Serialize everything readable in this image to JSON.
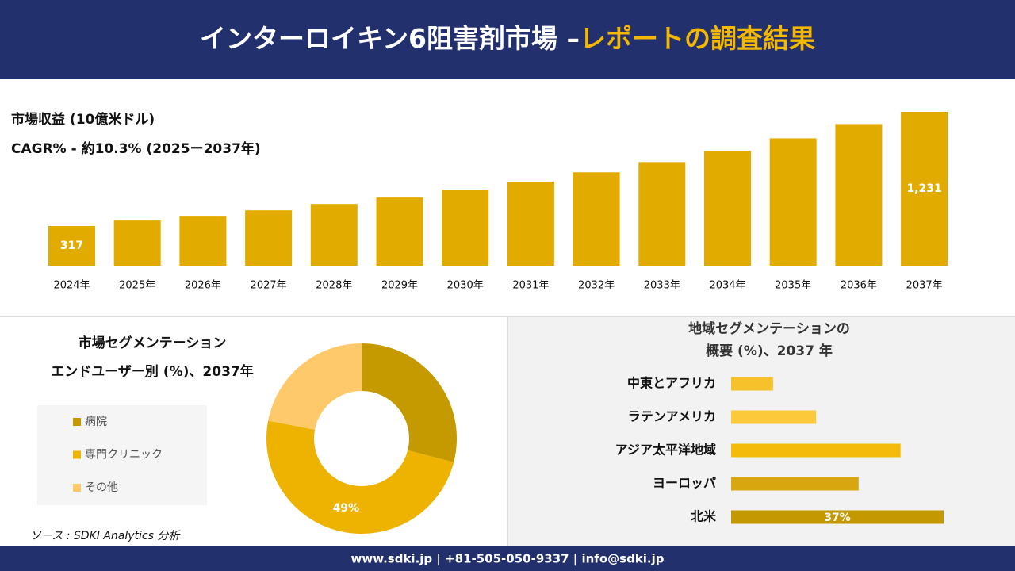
{
  "header": {
    "title": "インターロイキン6阻害剤市場 –",
    "title_highlight": "レポートの調査結果"
  },
  "chart_data": [
    {
      "type": "bar",
      "title": "市場収益 (10億米ドル)",
      "subtitle": "CAGR% - 約10.3% (2025ー2037年)",
      "categories": [
        "2024年",
        "2025年",
        "2026年",
        "2027年",
        "2028年",
        "2029年",
        "2030年",
        "2031年",
        "2032年",
        "2033年",
        "2034年",
        "2035年",
        "2036年",
        "2037年"
      ],
      "values": [
        317,
        361,
        399,
        443,
        494,
        545,
        608,
        671,
        747,
        829,
        918,
        1019,
        1133,
        1231
      ],
      "value_labels": [
        "317",
        null,
        null,
        null,
        null,
        null,
        null,
        null,
        null,
        null,
        null,
        null,
        null,
        "1,231"
      ],
      "color": "#e2ab00"
    },
    {
      "type": "donut",
      "title_lines": [
        "市場セグメンテーション",
        "エンドユーザー別 (%)、2037年"
      ],
      "categories": [
        "病院",
        "専門クリニック",
        "その他"
      ],
      "values": [
        29,
        49,
        22
      ],
      "value_labels": [
        null,
        "49%",
        null
      ],
      "colors": [
        "#c49a00",
        "#eeb300",
        "#fdc96a"
      ]
    },
    {
      "type": "barh",
      "title_lines": [
        "地域セグメンテーションの",
        "概要 (%)、2037 年"
      ],
      "categories": [
        "中東とアフリカ",
        "ラテンアメリカ",
        "アジア太平洋地域",
        "ヨーロッパ",
        "北米"
      ],
      "values": [
        7.3,
        14.8,
        29.5,
        22.2,
        37
      ],
      "value_labels": [
        null,
        null,
        null,
        null,
        "37%"
      ],
      "colors": [
        "#f6c12a",
        "#fcc93a",
        "#f5bb0a",
        "#d8a60e",
        "#c49800"
      ]
    }
  ],
  "source": "ソース : SDKI Analytics 分析",
  "footer": "www.sdki.jp | +81-505-050-9337 | info@sdki.jp"
}
